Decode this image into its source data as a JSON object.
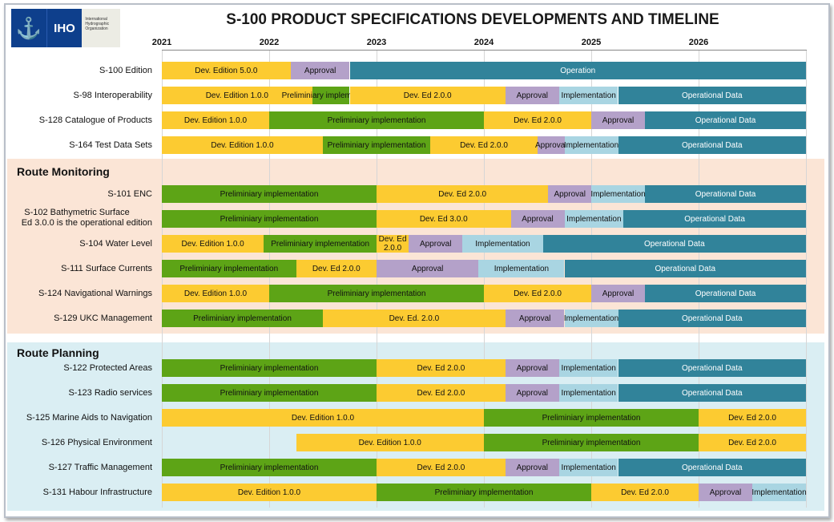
{
  "title": "S-100 PRODUCT SPECIFICATIONS DEVELOPMENTS AND TIMELINE",
  "logo": {
    "abbr": "IHO",
    "name": "International Hydrographic Organization"
  },
  "sections": [
    {
      "label": "Route Monitoring"
    },
    {
      "label": "Route Planning"
    }
  ],
  "colors": {
    "dev": "#fccb31",
    "pre": "#5da416",
    "appr": "#b4a1c9",
    "impl": "#a9d5e2",
    "op": "#31839a",
    "monitoring_bg": "#fbe5d6",
    "planning_bg": "#daeef3"
  },
  "chart_data": {
    "type": "gantt",
    "x_ticks": [
      "2021",
      "2022",
      "2023",
      "2024",
      "2025",
      "2026"
    ],
    "xlim": [
      "2021-01",
      "2027-01"
    ],
    "rows": [
      {
        "label": "S-100 Edition",
        "segments": [
          {
            "phase": "dev",
            "text": "Dev. Edition 5.0.0",
            "start": 2021.0,
            "end": 2022.2
          },
          {
            "phase": "appr",
            "text": "Approval",
            "start": 2022.2,
            "end": 2022.75
          },
          {
            "phase": "op",
            "text": "Operation",
            "start": 2022.75,
            "end": 2027.0
          }
        ]
      },
      {
        "label": "S-98 Interoperability",
        "segments": [
          {
            "phase": "dev",
            "text": "Dev. Edition 1.0.0",
            "start": 2021.0,
            "end": 2022.4
          },
          {
            "phase": "pre",
            "text": "Preliminiary implementation",
            "start": 2022.4,
            "end": 2022.75
          },
          {
            "phase": "dev",
            "text": "Dev. Ed 2.0.0",
            "start": 2022.75,
            "end": 2024.2
          },
          {
            "phase": "appr",
            "text": "Approval",
            "start": 2024.2,
            "end": 2024.7
          },
          {
            "phase": "impl",
            "text": "Implementation",
            "start": 2024.7,
            "end": 2025.25
          },
          {
            "phase": "op",
            "text": "Operational Data",
            "start": 2025.25,
            "end": 2027.0
          }
        ]
      },
      {
        "label": "S-128 Catalogue of Products",
        "segments": [
          {
            "phase": "dev",
            "text": "Dev. Edition 1.0.0",
            "start": 2021.0,
            "end": 2022.0
          },
          {
            "phase": "pre",
            "text": "Preliminiary implementation",
            "start": 2022.0,
            "end": 2024.0
          },
          {
            "phase": "dev",
            "text": "Dev. Ed 2.0.0",
            "start": 2024.0,
            "end": 2025.0
          },
          {
            "phase": "appr",
            "text": "Approval",
            "start": 2025.0,
            "end": 2025.5
          },
          {
            "phase": "op",
            "text": "Operational Data",
            "start": 2025.5,
            "end": 2027.0
          }
        ]
      },
      {
        "label": "S-164 Test Data Sets",
        "segments": [
          {
            "phase": "dev",
            "text": "Dev. Edition 1.0.0",
            "start": 2021.0,
            "end": 2022.5
          },
          {
            "phase": "pre",
            "text": "Preliminiary implementation",
            "start": 2022.5,
            "end": 2023.5
          },
          {
            "phase": "dev",
            "text": "Dev. Ed 2.0.0",
            "start": 2023.5,
            "end": 2024.5
          },
          {
            "phase": "appr",
            "text": "Approval",
            "start": 2024.5,
            "end": 2024.75
          },
          {
            "phase": "impl",
            "text": "Implementation",
            "start": 2024.75,
            "end": 2025.25
          },
          {
            "phase": "op",
            "text": "Operational Data",
            "start": 2025.25,
            "end": 2027.0
          }
        ]
      },
      {
        "label": "S-101 ENC",
        "segments": [
          {
            "phase": "pre",
            "text": "Preliminiary implementation",
            "start": 2021.0,
            "end": 2023.0
          },
          {
            "phase": "dev",
            "text": "Dev. Ed 2.0.0",
            "start": 2023.0,
            "end": 2024.6
          },
          {
            "phase": "appr",
            "text": "Approval",
            "start": 2024.6,
            "end": 2025.0
          },
          {
            "phase": "impl",
            "text": "Implementation",
            "start": 2025.0,
            "end": 2025.5
          },
          {
            "phase": "op",
            "text": "Operational Data",
            "start": 2025.5,
            "end": 2027.0
          }
        ]
      },
      {
        "label": "S-102 Bathymetric Surface",
        "label2": "Ed 3.0.0 is the operational edition",
        "segments": [
          {
            "phase": "pre",
            "text": "Preliminiary implementation",
            "start": 2021.0,
            "end": 2023.0
          },
          {
            "phase": "dev",
            "text": "Dev. Ed 3.0.0",
            "start": 2023.0,
            "end": 2024.25
          },
          {
            "phase": "appr",
            "text": "Approval",
            "start": 2024.25,
            "end": 2024.75
          },
          {
            "phase": "impl",
            "text": "Implementation",
            "start": 2024.75,
            "end": 2025.3
          },
          {
            "phase": "op",
            "text": "Operational Data",
            "start": 2025.3,
            "end": 2027.0
          }
        ]
      },
      {
        "label": "S-104 Water Level",
        "segments": [
          {
            "phase": "dev",
            "text": "Dev. Edition 1.0.0",
            "start": 2021.0,
            "end": 2021.95
          },
          {
            "phase": "pre",
            "text": "Preliminiary implementation",
            "start": 2021.95,
            "end": 2023.0
          },
          {
            "phase": "dev",
            "text": "Dev. Ed 2.0.0",
            "start": 2023.0,
            "end": 2023.3
          },
          {
            "phase": "appr",
            "text": "Approval",
            "start": 2023.3,
            "end": 2023.8
          },
          {
            "phase": "impl",
            "text": "Implementation",
            "start": 2023.8,
            "end": 2024.55
          },
          {
            "phase": "op",
            "text": "Operational Data",
            "start": 2024.55,
            "end": 2027.0
          }
        ]
      },
      {
        "label": "S-111 Surface Currents",
        "segments": [
          {
            "phase": "pre",
            "text": "Preliminiary implementation",
            "start": 2021.0,
            "end": 2022.25
          },
          {
            "phase": "dev",
            "text": "Dev. Ed 2.0.0",
            "start": 2022.25,
            "end": 2023.0
          },
          {
            "phase": "appr",
            "text": "Approval",
            "start": 2023.0,
            "end": 2023.95
          },
          {
            "phase": "impl",
            "text": "Implementation",
            "start": 2023.95,
            "end": 2024.75
          },
          {
            "phase": "op",
            "text": "Operational Data",
            "start": 2024.75,
            "end": 2027.0
          }
        ]
      },
      {
        "label": "S-124 Navigational Warnings",
        "segments": [
          {
            "phase": "dev",
            "text": "Dev. Edition 1.0.0",
            "start": 2021.0,
            "end": 2022.0
          },
          {
            "phase": "pre",
            "text": "Preliminiary implementation",
            "start": 2022.0,
            "end": 2024.0
          },
          {
            "phase": "dev",
            "text": "Dev. Ed 2.0.0",
            "start": 2024.0,
            "end": 2025.0
          },
          {
            "phase": "appr",
            "text": "Approval",
            "start": 2025.0,
            "end": 2025.5
          },
          {
            "phase": "op",
            "text": "Operational Data",
            "start": 2025.5,
            "end": 2027.0
          }
        ]
      },
      {
        "label": "S-129 UKC Management",
        "segments": [
          {
            "phase": "pre",
            "text": "Preliminiary implementation",
            "start": 2021.0,
            "end": 2022.5
          },
          {
            "phase": "dev",
            "text": "Dev. Ed. 2.0.0",
            "start": 2022.5,
            "end": 2024.2
          },
          {
            "phase": "appr",
            "text": "Approval",
            "start": 2024.2,
            "end": 2024.75
          },
          {
            "phase": "impl",
            "text": "Implementation",
            "start": 2024.75,
            "end": 2025.25
          },
          {
            "phase": "op",
            "text": "Operational Data",
            "start": 2025.25,
            "end": 2027.0
          }
        ]
      },
      {
        "label": "S-122 Protected Areas",
        "segments": [
          {
            "phase": "pre",
            "text": "Preliminiary implementation",
            "start": 2021.0,
            "end": 2023.0
          },
          {
            "phase": "dev",
            "text": "Dev. Ed 2.0.0",
            "start": 2023.0,
            "end": 2024.2
          },
          {
            "phase": "appr",
            "text": "Approval",
            "start": 2024.2,
            "end": 2024.7
          },
          {
            "phase": "impl",
            "text": "Implementation",
            "start": 2024.7,
            "end": 2025.25
          },
          {
            "phase": "op",
            "text": "Operational Data",
            "start": 2025.25,
            "end": 2027.0
          }
        ]
      },
      {
        "label": "S-123 Radio services",
        "segments": [
          {
            "phase": "pre",
            "text": "Preliminiary implementation",
            "start": 2021.0,
            "end": 2023.0
          },
          {
            "phase": "dev",
            "text": "Dev. Ed 2.0.0",
            "start": 2023.0,
            "end": 2024.2
          },
          {
            "phase": "appr",
            "text": "Approval",
            "start": 2024.2,
            "end": 2024.7
          },
          {
            "phase": "impl",
            "text": "Implementation",
            "start": 2024.7,
            "end": 2025.25
          },
          {
            "phase": "op",
            "text": "Operational Data",
            "start": 2025.25,
            "end": 2027.0
          }
        ]
      },
      {
        "label": "S-125  Marine Aids to Navigation",
        "segments": [
          {
            "phase": "dev",
            "text": "Dev. Edition 1.0.0",
            "start": 2021.0,
            "end": 2024.0
          },
          {
            "phase": "pre",
            "text": "Preliminiary implementation",
            "start": 2024.0,
            "end": 2026.0
          },
          {
            "phase": "dev",
            "text": "Dev. Ed 2.0.0",
            "start": 2026.0,
            "end": 2027.0
          }
        ]
      },
      {
        "label": "S-126 Physical Environment",
        "segments": [
          {
            "phase": "dev",
            "text": "Dev. Edition 1.0.0",
            "start": 2022.25,
            "end": 2024.0
          },
          {
            "phase": "pre",
            "text": "Preliminiary implementation",
            "start": 2024.0,
            "end": 2026.0
          },
          {
            "phase": "dev",
            "text": "Dev. Ed 2.0.0",
            "start": 2026.0,
            "end": 2027.0
          }
        ]
      },
      {
        "label": "S-127 Traffic Management",
        "segments": [
          {
            "phase": "pre",
            "text": "Preliminiary implementation",
            "start": 2021.0,
            "end": 2023.0
          },
          {
            "phase": "dev",
            "text": "Dev. Ed 2.0.0",
            "start": 2023.0,
            "end": 2024.2
          },
          {
            "phase": "appr",
            "text": "Approval",
            "start": 2024.2,
            "end": 2024.7
          },
          {
            "phase": "impl",
            "text": "Implementation",
            "start": 2024.7,
            "end": 2025.25
          },
          {
            "phase": "op",
            "text": "Operational Data",
            "start": 2025.25,
            "end": 2027.0
          }
        ]
      },
      {
        "label": "S-131 Habour Infrastructure",
        "segments": [
          {
            "phase": "dev",
            "text": "Dev. Edition 1.0.0",
            "start": 2021.0,
            "end": 2023.0
          },
          {
            "phase": "pre",
            "text": "Preliminiary implementation",
            "start": 2023.0,
            "end": 2025.0
          },
          {
            "phase": "dev",
            "text": "Dev. Ed 2.0.0",
            "start": 2025.0,
            "end": 2026.0
          },
          {
            "phase": "appr",
            "text": "Approval",
            "start": 2026.0,
            "end": 2026.5
          },
          {
            "phase": "impl",
            "text": "Implementation",
            "start": 2026.5,
            "end": 2027.0
          }
        ]
      }
    ]
  }
}
